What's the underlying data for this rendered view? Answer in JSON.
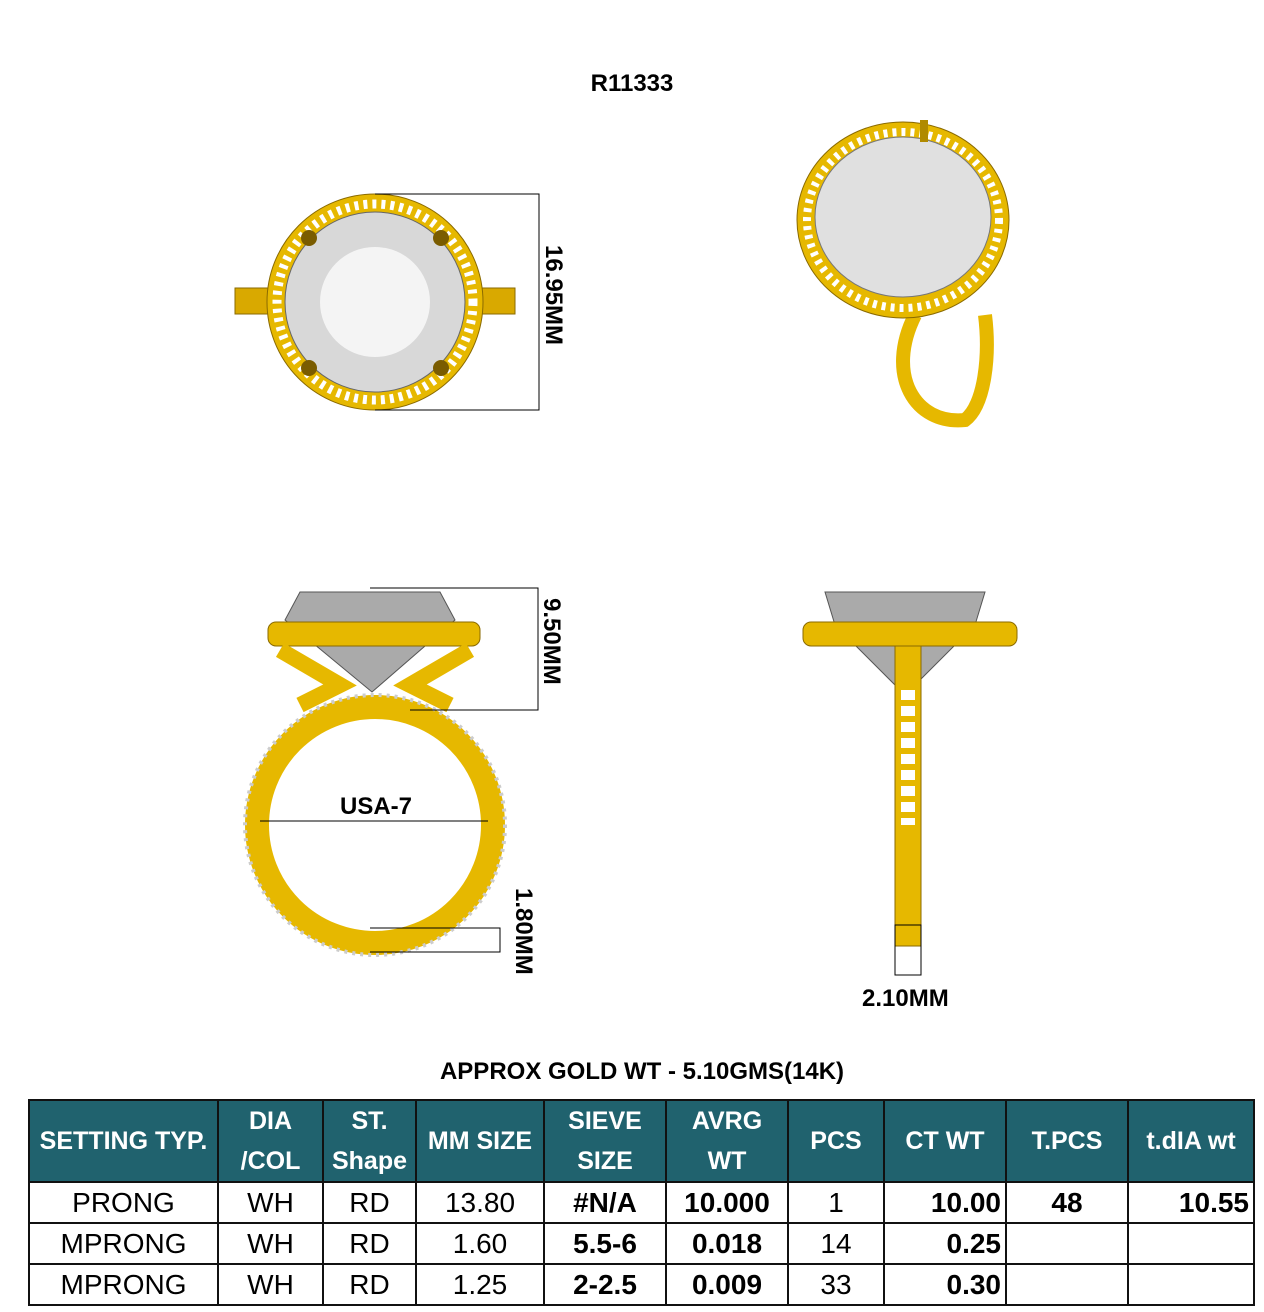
{
  "title": "R11333",
  "dimensions": {
    "top_view_diameter": "16.95MM",
    "side_height": "9.50MM",
    "ring_size": "USA-7",
    "shank_thickness": "1.80MM",
    "shank_width": "2.10MM"
  },
  "gold_weight": "APPROX GOLD WT - 5.10GMS(14K)",
  "colors": {
    "header_bg": "#20626e",
    "gold": "#e6b800",
    "stone": "#d8d8d8"
  },
  "table": {
    "headers": [
      "SETTING TYP.",
      "DIA\n/COL",
      "ST.\nShape",
      "MM SIZE",
      "SIEVE\nSIZE",
      "AVRG\nWT",
      "PCS",
      "CT WT",
      "T.PCS",
      "t.dIA wt"
    ],
    "header_lines": [
      [
        "SETTING TYP."
      ],
      [
        "DIA",
        "/COL"
      ],
      [
        "ST.",
        "Shape"
      ],
      [
        "MM SIZE"
      ],
      [
        "SIEVE",
        "SIZE"
      ],
      [
        "AVRG",
        "WT"
      ],
      [
        "PCS"
      ],
      [
        "CT WT"
      ],
      [
        "T.PCS"
      ],
      [
        "t.dIA wt"
      ]
    ],
    "rows": [
      [
        "PRONG",
        "WH",
        "RD",
        "13.80",
        "#N/A",
        "10.000",
        "1",
        "10.00",
        "48",
        "10.55"
      ],
      [
        "MPRONG",
        "WH",
        "RD",
        "1.60",
        "5.5-6",
        "0.018",
        "14",
        "0.25",
        "",
        ""
      ],
      [
        "MPRONG",
        "WH",
        "RD",
        "1.25",
        "2-2.5",
        "0.009",
        "33",
        "0.30",
        "",
        ""
      ]
    ]
  }
}
